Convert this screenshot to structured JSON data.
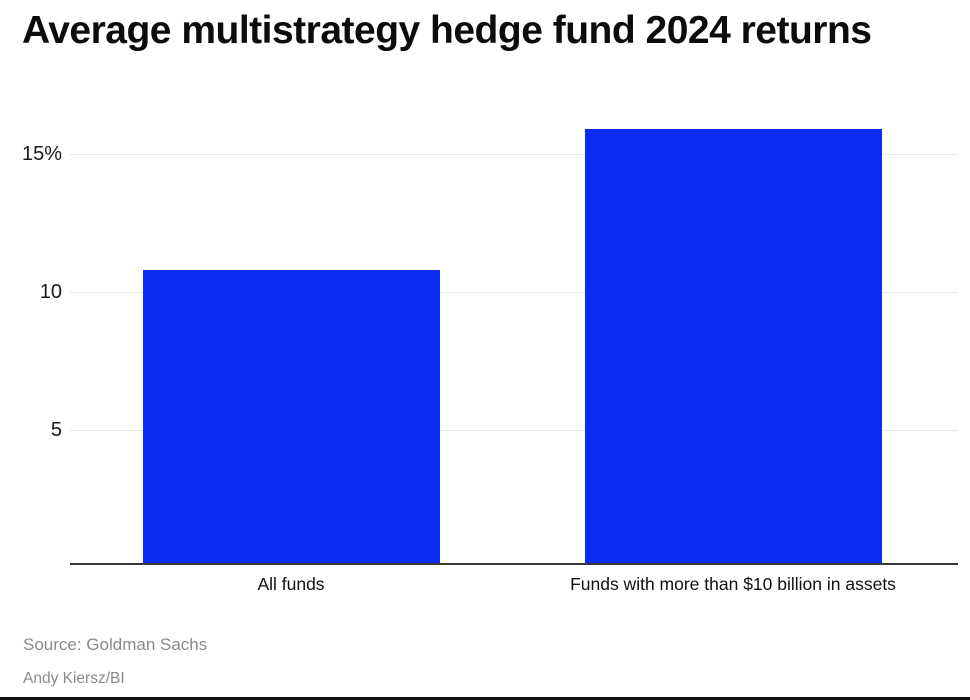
{
  "header": {
    "title": "Average multistrategy hedge fund 2024 returns"
  },
  "chart_data": {
    "type": "bar",
    "title": "Average multistrategy hedge fund 2024 returns",
    "categories": [
      "All funds",
      "Funds with more than $10 billion in assets"
    ],
    "values": [
      10.8,
      15.9
    ],
    "value_unit": "%",
    "xlabel": "",
    "ylabel": "",
    "yticks": [
      5,
      10,
      15
    ],
    "ytick_labels": [
      "5",
      "10",
      "15%"
    ],
    "ylim": [
      0,
      16.4
    ],
    "grid": true,
    "legend": false,
    "bar_color": "#0d2df2"
  },
  "footer": {
    "source": "Source: Goldman Sachs",
    "credit": "Andy Kiersz/BI"
  },
  "colors": {
    "bar": "#0d2df2",
    "gridline": "#e8e8e8",
    "axis": "#383838",
    "title_text": "#0c0c0c",
    "tick_text": "#1a1a1a",
    "muted_text": "#8a8a8a"
  }
}
